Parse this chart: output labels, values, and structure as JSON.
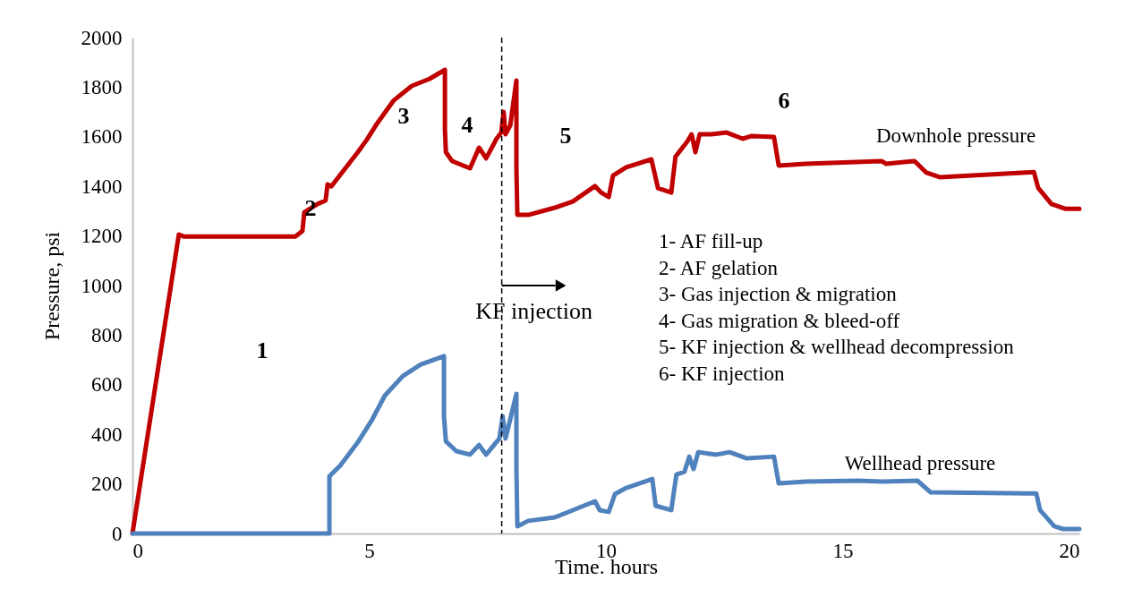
{
  "chart_data": {
    "type": "line",
    "xlabel": "Time. hours",
    "ylabel": "Pressure, psi",
    "xlim": [
      0,
      20
    ],
    "xticks": [
      0,
      5,
      10,
      15,
      20
    ],
    "ylim": [
      0,
      2000
    ],
    "yticks": [
      0,
      200,
      400,
      600,
      800,
      1000,
      1200,
      1400,
      1600,
      1800,
      2000
    ],
    "grid": false,
    "legend": false,
    "line_style": "solid",
    "marker": "none",
    "series": [
      {
        "name": "Downhole pressure",
        "color": "#c00000",
        "x": [
          0,
          0.98,
          1.08,
          3.44,
          3.59,
          3.63,
          3.91,
          4.08,
          4.12,
          4.2,
          4.76,
          4.95,
          5.14,
          5.52,
          5.9,
          6.28,
          6.6,
          6.6,
          6.62,
          6.75,
          7.13,
          7.32,
          7.47,
          7.69,
          7.79,
          7.84,
          7.88,
          7.98,
          8.11,
          8.11,
          8.13,
          8.36,
          8.92,
          9.3,
          9.77,
          9.9,
          10.06,
          10.15,
          10.43,
          10.96,
          11.1,
          11.38,
          11.47,
          11.72,
          11.81,
          11.89,
          11.98,
          12.23,
          12.55,
          12.89,
          13.08,
          13.55,
          13.65,
          14.22,
          15.82,
          15.92,
          16.52,
          16.77,
          17.05,
          19.04,
          19.13,
          19.41,
          19.7,
          20
        ],
        "values": [
          0,
          1206,
          1198,
          1198,
          1220,
          1296,
          1329,
          1343,
          1408,
          1400,
          1538,
          1588,
          1646,
          1747,
          1805,
          1834,
          1870,
          1628,
          1538,
          1502,
          1473,
          1556,
          1513,
          1592,
          1617,
          1700,
          1610,
          1646,
          1827,
          1466,
          1285,
          1285,
          1314,
          1339,
          1401,
          1375,
          1357,
          1444,
          1477,
          1509,
          1393,
          1375,
          1520,
          1581,
          1610,
          1538,
          1610,
          1610,
          1617,
          1592,
          1603,
          1599,
          1484,
          1491,
          1502,
          1491,
          1502,
          1455,
          1437,
          1458,
          1394,
          1329,
          1310,
          1310
        ]
      },
      {
        "name": "Wellhead pressure",
        "color": "#4f81bd",
        "x": [
          0,
          3.91,
          4.16,
          4.16,
          4.39,
          4.76,
          5.05,
          5.33,
          5.71,
          6.09,
          6.58,
          6.58,
          6.62,
          6.84,
          7.13,
          7.32,
          7.47,
          7.75,
          7.82,
          7.88,
          8.11,
          8.11,
          8.13,
          8.36,
          8.92,
          9.3,
          9.77,
          9.87,
          10.06,
          10.19,
          10.43,
          10.98,
          11.05,
          11.38,
          11.49,
          11.66,
          11.76,
          11.85,
          11.95,
          12.33,
          12.61,
          12.98,
          13.55,
          13.65,
          14.22,
          15.35,
          15.82,
          16.58,
          16.86,
          18.94,
          19.09,
          19.17,
          19.47,
          19.66,
          20
        ],
        "values": [
          0,
          0,
          0,
          231,
          274,
          368,
          455,
          556,
          635,
          682,
          715,
          473,
          372,
          332,
          318,
          357,
          318,
          383,
          473,
          383,
          563,
          264,
          29,
          51,
          65,
          94,
          130,
          94,
          87,
          159,
          184,
          220,
          112,
          94,
          238,
          249,
          310,
          260,
          328,
          318,
          328,
          303,
          310,
          202,
          209,
          213,
          209,
          213,
          166,
          162,
          162,
          94,
          29,
          18,
          18
        ]
      }
    ],
    "ref_lines": [
      {
        "axis": "x",
        "value": 7.8,
        "label": "KF injection",
        "line_style": "dashed",
        "color": "#000000"
      }
    ],
    "annotations": [
      "1",
      "2",
      "3",
      "4",
      "5",
      "6",
      "1- AF fill-up",
      "2- AF gelation",
      "3- Gas injection & migration",
      "4- Gas migration & bleed-off",
      "5- KF injection & wellhead decompression",
      "6- KF injection"
    ]
  }
}
